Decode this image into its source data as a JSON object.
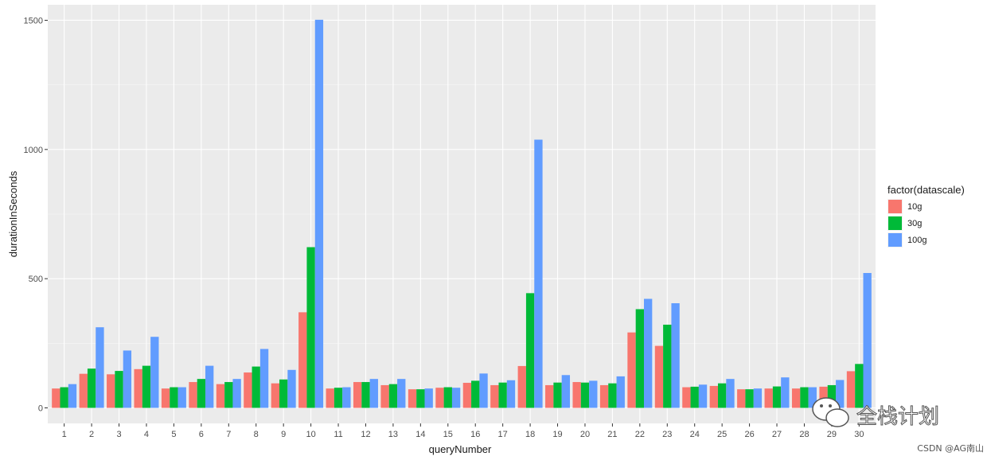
{
  "chart_data": {
    "type": "bar",
    "xlabel": "queryNumber",
    "ylabel": "durationInSeconds",
    "ylim": [
      -60,
      1560
    ],
    "yticks": [
      0,
      500,
      1000,
      1500
    ],
    "grid": true,
    "legend_position": "right",
    "legend_title": "factor(datascale)",
    "categories": [
      "1",
      "2",
      "3",
      "4",
      "5",
      "6",
      "7",
      "8",
      "9",
      "10",
      "11",
      "12",
      "13",
      "14",
      "15",
      "16",
      "17",
      "18",
      "19",
      "20",
      "21",
      "22",
      "23",
      "24",
      "25",
      "26",
      "27",
      "28",
      "29",
      "30"
    ],
    "series": [
      {
        "name": "10g",
        "color": "#F8766D",
        "values": [
          75,
          132,
          130,
          150,
          75,
          100,
          92,
          137,
          95,
          370,
          75,
          100,
          88,
          72,
          78,
          97,
          88,
          162,
          88,
          100,
          88,
          292,
          240,
          80,
          85,
          72,
          75,
          75,
          82,
          142
        ]
      },
      {
        "name": "30g",
        "color": "#00BA38",
        "values": [
          80,
          152,
          143,
          163,
          80,
          112,
          100,
          160,
          110,
          622,
          78,
          100,
          92,
          72,
          80,
          105,
          98,
          444,
          98,
          98,
          95,
          382,
          322,
          82,
          95,
          72,
          83,
          80,
          88,
          170
        ]
      },
      {
        "name": "100g",
        "color": "#619CFF",
        "values": [
          92,
          312,
          222,
          275,
          80,
          163,
          112,
          228,
          147,
          1502,
          80,
          112,
          112,
          75,
          78,
          133,
          107,
          1038,
          127,
          105,
          122,
          422,
          405,
          90,
          112,
          75,
          118,
          80,
          108,
          522
        ]
      }
    ]
  },
  "watermark": {
    "text": "全栈计划",
    "icon": "wechat-icon"
  },
  "credit": "CSDN @AG南山"
}
